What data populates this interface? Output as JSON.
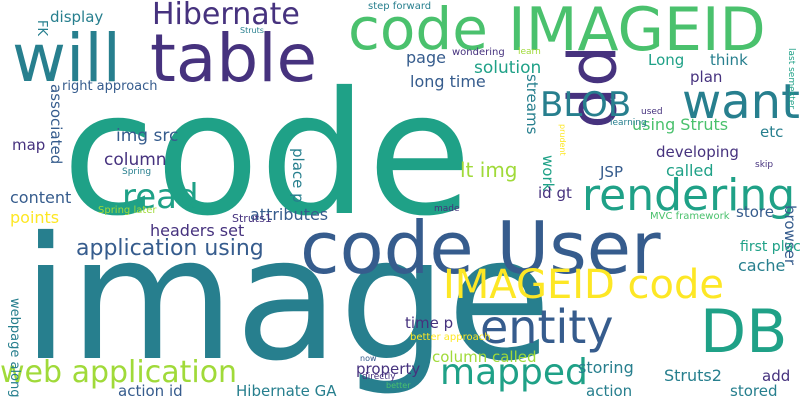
{
  "palette": {
    "purple": "#46327e",
    "dark_blue": "#365c8d",
    "teal": "#277f8e",
    "green": "#1fa187",
    "light_green": "#4ac16d",
    "lime": "#a0da39",
    "yellow": "#fde725"
  },
  "words": [
    {
      "id": "code-main",
      "text": "code",
      "color": "green",
      "vertical": false
    },
    {
      "id": "image",
      "text": "image",
      "color": "teal",
      "vertical": false
    },
    {
      "id": "code-user",
      "text": "code User",
      "color": "dark_blue",
      "vertical": false
    },
    {
      "id": "imageid-top",
      "text": "IMAGEID",
      "color": "light_green",
      "vertical": false
    },
    {
      "id": "code-top",
      "text": "code",
      "color": "light_green",
      "vertical": false
    },
    {
      "id": "will",
      "text": "will",
      "color": "teal",
      "vertical": false
    },
    {
      "id": "table",
      "text": "table",
      "color": "purple",
      "vertical": false
    },
    {
      "id": "hibernate",
      "text": "Hibernate",
      "color": "purple",
      "vertical": false
    },
    {
      "id": "pp",
      "text": "pp",
      "color": "purple",
      "vertical": true
    },
    {
      "id": "want",
      "text": "want",
      "color": "teal",
      "vertical": false
    },
    {
      "id": "blob",
      "text": "BLOB",
      "color": "teal",
      "vertical": false
    },
    {
      "id": "rendering",
      "text": "rendering",
      "color": "green",
      "vertical": false
    },
    {
      "id": "entity",
      "text": "entity",
      "color": "dark_blue",
      "vertical": false
    },
    {
      "id": "db",
      "text": "DB",
      "color": "green",
      "vertical": false
    },
    {
      "id": "imageid-code",
      "text": "IMAGEID code",
      "color": "yellow",
      "vertical": false
    },
    {
      "id": "mapped",
      "text": "mapped",
      "color": "green",
      "vertical": false
    },
    {
      "id": "web-application",
      "text": "web application",
      "color": "lime",
      "vertical": false
    },
    {
      "id": "read",
      "text": "read",
      "color": "green",
      "vertical": false
    },
    {
      "id": "application-using",
      "text": "application using",
      "color": "dark_blue",
      "vertical": false
    },
    {
      "id": "headers-set",
      "text": "headers set",
      "color": "purple",
      "vertical": false
    },
    {
      "id": "attributes",
      "text": "attributes",
      "color": "dark_blue",
      "vertical": false
    },
    {
      "id": "lt-img",
      "text": "lt img",
      "color": "lime",
      "vertical": false
    },
    {
      "id": "img-src",
      "text": "img src",
      "color": "dark_blue",
      "vertical": false
    },
    {
      "id": "column",
      "text": "column",
      "color": "purple",
      "vertical": false
    },
    {
      "id": "content",
      "text": "content",
      "color": "dark_blue",
      "vertical": false
    },
    {
      "id": "points",
      "text": "points",
      "color": "yellow",
      "vertical": false
    },
    {
      "id": "map",
      "text": "map",
      "color": "purple",
      "vertical": false
    },
    {
      "id": "associated",
      "text": "associated",
      "color": "dark_blue",
      "vertical": true
    },
    {
      "id": "place-p",
      "text": "place p",
      "color": "teal",
      "vertical": true
    },
    {
      "id": "display",
      "text": "display",
      "color": "teal",
      "vertical": false
    },
    {
      "id": "fk",
      "text": "FK",
      "color": "teal",
      "vertical": true
    },
    {
      "id": "right-approach",
      "text": "right approach",
      "color": "dark_blue",
      "vertical": false
    },
    {
      "id": "page",
      "text": "page",
      "color": "dark_blue",
      "vertical": false
    },
    {
      "id": "long-time",
      "text": "long time",
      "color": "dark_blue",
      "vertical": false
    },
    {
      "id": "solution",
      "text": "solution",
      "color": "green",
      "vertical": false
    },
    {
      "id": "streams",
      "text": "streams",
      "color": "teal",
      "vertical": true
    },
    {
      "id": "work",
      "text": "work",
      "color": "green",
      "vertical": true
    },
    {
      "id": "jsp",
      "text": "JSP",
      "color": "dark_blue",
      "vertical": false
    },
    {
      "id": "id-gt",
      "text": "id gt",
      "color": "purple",
      "vertical": false
    },
    {
      "id": "long",
      "text": "Long",
      "color": "green",
      "vertical": false
    },
    {
      "id": "think",
      "text": "think",
      "color": "teal",
      "vertical": false
    },
    {
      "id": "plan",
      "text": "plan",
      "color": "purple",
      "vertical": false
    },
    {
      "id": "using-struts",
      "text": "using Struts",
      "color": "light_green",
      "vertical": false
    },
    {
      "id": "etc",
      "text": "etc",
      "color": "teal",
      "vertical": false
    },
    {
      "id": "developing",
      "text": "developing",
      "color": "purple",
      "vertical": false
    },
    {
      "id": "called",
      "text": "called",
      "color": "green",
      "vertical": false
    },
    {
      "id": "store",
      "text": "store",
      "color": "dark_blue",
      "vertical": false
    },
    {
      "id": "browser",
      "text": "browser",
      "color": "dark_blue",
      "vertical": true
    },
    {
      "id": "first-place",
      "text": "first place",
      "color": "green",
      "vertical": false
    },
    {
      "id": "cache",
      "text": "cache",
      "color": "teal",
      "vertical": false
    },
    {
      "id": "time-p",
      "text": "time p",
      "color": "purple",
      "vertical": false
    },
    {
      "id": "column-called",
      "text": "column called",
      "color": "lime",
      "vertical": false
    },
    {
      "id": "storing",
      "text": "storing",
      "color": "teal",
      "vertical": false
    },
    {
      "id": "struts2",
      "text": "Struts2",
      "color": "teal",
      "vertical": false
    },
    {
      "id": "add",
      "text": "add",
      "color": "purple",
      "vertical": false
    },
    {
      "id": "stored",
      "text": "stored",
      "color": "teal",
      "vertical": false
    },
    {
      "id": "action",
      "text": "action",
      "color": "teal",
      "vertical": false
    },
    {
      "id": "property",
      "text": "property",
      "color": "purple",
      "vertical": false
    },
    {
      "id": "action-id",
      "text": "action id",
      "color": "dark_blue",
      "vertical": false
    },
    {
      "id": "hibernate-ga",
      "text": "Hibernate GA",
      "color": "teal",
      "vertical": false
    },
    {
      "id": "webpage-along",
      "text": "webpage along",
      "color": "teal",
      "vertical": true
    },
    {
      "id": "struts1",
      "text": "Struts1",
      "color": "purple",
      "vertical": false
    },
    {
      "id": "spring-later",
      "text": "Spring later",
      "color": "lime",
      "vertical": false
    },
    {
      "id": "spring",
      "text": "Spring",
      "color": "teal",
      "vertical": false
    },
    {
      "id": "step-forward",
      "text": "step forward",
      "color": "teal",
      "vertical": false
    },
    {
      "id": "struts",
      "text": "Struts",
      "color": "teal",
      "vertical": false
    },
    {
      "id": "wondering",
      "text": "wondering",
      "color": "purple",
      "vertical": false
    },
    {
      "id": "learn",
      "text": "learn",
      "color": "lime",
      "vertical": false
    },
    {
      "id": "last-semester",
      "text": "last semester",
      "color": "green",
      "vertical": true
    },
    {
      "id": "used",
      "text": "used",
      "color": "purple",
      "vertical": false
    },
    {
      "id": "learning",
      "text": "learning",
      "color": "teal",
      "vertical": false
    },
    {
      "id": "prudent",
      "text": "prudent",
      "color": "yellow",
      "vertical": true
    },
    {
      "id": "skip",
      "text": "skip",
      "color": "purple",
      "vertical": false
    },
    {
      "id": "made",
      "text": "made",
      "color": "purple",
      "vertical": false
    },
    {
      "id": "mvc-framework",
      "text": "MVC framework",
      "color": "light_green",
      "vertical": false
    },
    {
      "id": "better-approach",
      "text": "better approach",
      "color": "yellow",
      "vertical": false
    },
    {
      "id": "now",
      "text": "now",
      "color": "dark_blue",
      "vertical": false
    },
    {
      "id": "directly",
      "text": "directly",
      "color": "purple",
      "vertical": false
    },
    {
      "id": "better",
      "text": "better",
      "color": "light_green",
      "vertical": false
    }
  ]
}
